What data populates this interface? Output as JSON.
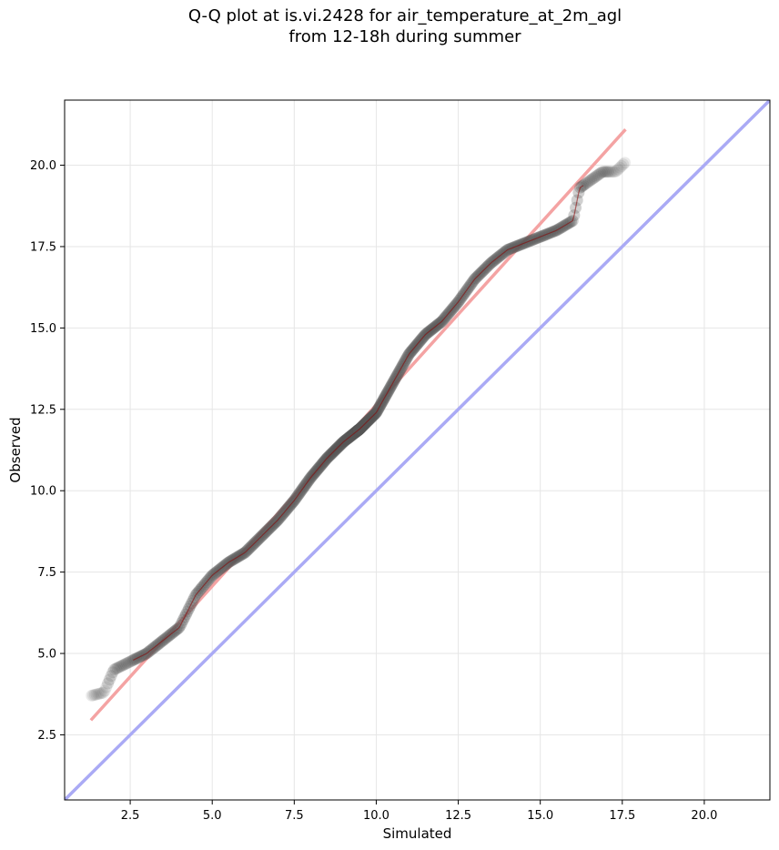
{
  "chart_data": {
    "type": "scatter",
    "title_line1": "Q-Q plot at is.vi.2428 for air_temperature_at_2m_agl",
    "title_line2": "from 12-18h during summer",
    "xlabel": "Simulated",
    "ylabel": "Observed",
    "xlim": [
      0.5,
      22.0
    ],
    "ylim": [
      0.5,
      22.0
    ],
    "xticks": [
      2.5,
      5.0,
      7.5,
      10.0,
      12.5,
      15.0,
      17.5,
      20.0
    ],
    "yticks": [
      2.5,
      5.0,
      7.5,
      10.0,
      12.5,
      15.0,
      17.5,
      20.0
    ],
    "xtick_labels": [
      "2.5",
      "5.0",
      "7.5",
      "10.0",
      "12.5",
      "15.0",
      "17.5",
      "20.0"
    ],
    "ytick_labels": [
      "2.5",
      "5.0",
      "7.5",
      "10.0",
      "12.5",
      "15.0",
      "17.5",
      "20.0"
    ],
    "grid": true,
    "colors": {
      "points": "#555555",
      "fit_line": "#f4a3a3",
      "identity_line": "#aaaaf5",
      "dense_line": "#8b0000"
    },
    "fit_line": {
      "x": [
        1.3,
        17.6
      ],
      "y": [
        2.95,
        21.1
      ]
    },
    "identity_line": {
      "x": [
        0.5,
        22.0
      ],
      "y": [
        0.5,
        22.0
      ]
    },
    "anchors": {
      "x": [
        1.3,
        1.7,
        2.0,
        2.4,
        3.0,
        3.5,
        4.0,
        4.5,
        5.0,
        5.5,
        6.0,
        6.5,
        7.0,
        7.5,
        8.0,
        8.5,
        9.0,
        9.5,
        10.0,
        10.5,
        11.0,
        11.5,
        12.0,
        12.5,
        13.0,
        13.5,
        14.0,
        14.5,
        15.0,
        15.5,
        16.0,
        16.2,
        16.9,
        17.3,
        17.6
      ],
      "y": [
        3.7,
        3.8,
        4.5,
        4.7,
        5.0,
        5.4,
        5.8,
        6.8,
        7.4,
        7.8,
        8.1,
        8.6,
        9.1,
        9.7,
        10.4,
        11.0,
        11.5,
        11.9,
        12.4,
        13.3,
        14.2,
        14.8,
        15.2,
        15.8,
        16.5,
        17.0,
        17.4,
        17.6,
        17.8,
        18.0,
        18.3,
        19.3,
        19.8,
        19.8,
        20.1
      ]
    },
    "point_count": 520
  }
}
